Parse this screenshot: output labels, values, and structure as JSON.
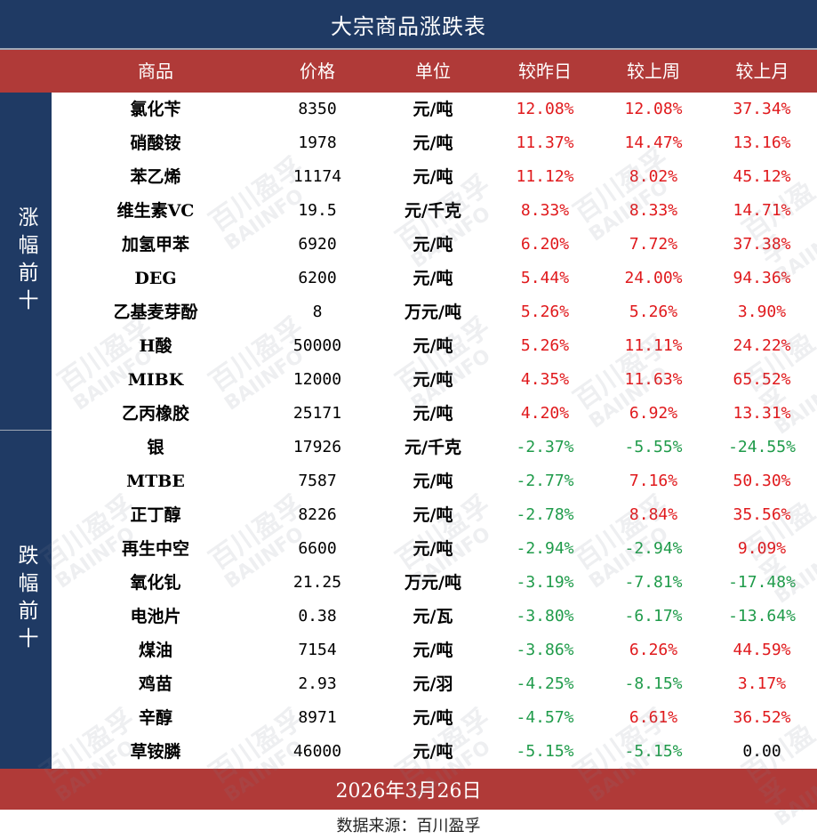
{
  "title": "大宗商品涨跌表",
  "headers": [
    "商品",
    "价格",
    "单位",
    "较昨日",
    "较上周",
    "较上月"
  ],
  "sections": {
    "gain_label": "涨幅前十",
    "loss_label": "跌幅前十"
  },
  "rows": [
    {
      "name": "氯化苄",
      "price": "8350",
      "unit": "元/吨",
      "day": "12.08%",
      "week": "12.08%",
      "month": "37.34%",
      "day_dir": "up",
      "week_dir": "up",
      "month_dir": "up"
    },
    {
      "name": "硝酸铵",
      "price": "1978",
      "unit": "元/吨",
      "day": "11.37%",
      "week": "14.47%",
      "month": "13.16%",
      "day_dir": "up",
      "week_dir": "up",
      "month_dir": "up"
    },
    {
      "name": "苯乙烯",
      "price": "11174",
      "unit": "元/吨",
      "day": "11.12%",
      "week": "8.02%",
      "month": "45.12%",
      "day_dir": "up",
      "week_dir": "up",
      "month_dir": "up"
    },
    {
      "name": "维生素VC",
      "price": "19.5",
      "unit": "元/千克",
      "day": "8.33%",
      "week": "8.33%",
      "month": "14.71%",
      "day_dir": "up",
      "week_dir": "up",
      "month_dir": "up"
    },
    {
      "name": "加氢甲苯",
      "price": "6920",
      "unit": "元/吨",
      "day": "6.20%",
      "week": "7.72%",
      "month": "37.38%",
      "day_dir": "up",
      "week_dir": "up",
      "month_dir": "up"
    },
    {
      "name": "DEG",
      "price": "6200",
      "unit": "元/吨",
      "day": "5.44%",
      "week": "24.00%",
      "month": "94.36%",
      "day_dir": "up",
      "week_dir": "up",
      "month_dir": "up"
    },
    {
      "name": "乙基麦芽酚",
      "price": "8",
      "unit": "万元/吨",
      "day": "5.26%",
      "week": "5.26%",
      "month": "3.90%",
      "day_dir": "up",
      "week_dir": "up",
      "month_dir": "up"
    },
    {
      "name": "H酸",
      "price": "50000",
      "unit": "元/吨",
      "day": "5.26%",
      "week": "11.11%",
      "month": "24.22%",
      "day_dir": "up",
      "week_dir": "up",
      "month_dir": "up"
    },
    {
      "name": "MIBK",
      "price": "12000",
      "unit": "元/吨",
      "day": "4.35%",
      "week": "11.63%",
      "month": "65.52%",
      "day_dir": "up",
      "week_dir": "up",
      "month_dir": "up"
    },
    {
      "name": "乙丙橡胶",
      "price": "25171",
      "unit": "元/吨",
      "day": "4.20%",
      "week": "6.92%",
      "month": "13.31%",
      "day_dir": "up",
      "week_dir": "up",
      "month_dir": "up"
    },
    {
      "name": "银",
      "price": "17926",
      "unit": "元/千克",
      "day": "-2.37%",
      "week": "-5.55%",
      "month": "-24.55%",
      "day_dir": "down",
      "week_dir": "down",
      "month_dir": "down"
    },
    {
      "name": "MTBE",
      "price": "7587",
      "unit": "元/吨",
      "day": "-2.77%",
      "week": "7.16%",
      "month": "50.30%",
      "day_dir": "down",
      "week_dir": "up",
      "month_dir": "up"
    },
    {
      "name": "正丁醇",
      "price": "8226",
      "unit": "元/吨",
      "day": "-2.78%",
      "week": "8.84%",
      "month": "35.56%",
      "day_dir": "down",
      "week_dir": "up",
      "month_dir": "up"
    },
    {
      "name": "再生中空",
      "price": "6600",
      "unit": "元/吨",
      "day": "-2.94%",
      "week": "-2.94%",
      "month": "9.09%",
      "day_dir": "down",
      "week_dir": "down",
      "month_dir": "up"
    },
    {
      "name": "氧化钆",
      "price": "21.25",
      "unit": "万元/吨",
      "day": "-3.19%",
      "week": "-7.81%",
      "month": "-17.48%",
      "day_dir": "down",
      "week_dir": "down",
      "month_dir": "down"
    },
    {
      "name": "电池片",
      "price": "0.38",
      "unit": "元/瓦",
      "day": "-3.80%",
      "week": "-6.17%",
      "month": "-13.64%",
      "day_dir": "down",
      "week_dir": "down",
      "month_dir": "down"
    },
    {
      "name": "煤油",
      "price": "7154",
      "unit": "元/吨",
      "day": "-3.86%",
      "week": "6.26%",
      "month": "44.59%",
      "day_dir": "down",
      "week_dir": "up",
      "month_dir": "up"
    },
    {
      "name": "鸡苗",
      "price": "2.93",
      "unit": "元/羽",
      "day": "-4.25%",
      "week": "-8.15%",
      "month": "3.17%",
      "day_dir": "down",
      "week_dir": "down",
      "month_dir": "up"
    },
    {
      "name": "辛醇",
      "price": "8971",
      "unit": "元/吨",
      "day": "-4.57%",
      "week": "6.61%",
      "month": "36.52%",
      "day_dir": "down",
      "week_dir": "up",
      "month_dir": "up"
    },
    {
      "name": "草铵膦",
      "price": "46000",
      "unit": "元/吨",
      "day": "-5.15%",
      "week": "-5.15%",
      "month": "0.00",
      "day_dir": "down",
      "week_dir": "down",
      "month_dir": "flat"
    }
  ],
  "date": "2026年3月26日",
  "source": "数据来源：百川盈孚",
  "watermark": {
    "cn": "百川盈孚",
    "en": "BAIINFO"
  },
  "colors": {
    "navy": "#1f3a64",
    "header_red": "#b03a38",
    "up": "#e0191c",
    "down": "#1f9b4a"
  }
}
